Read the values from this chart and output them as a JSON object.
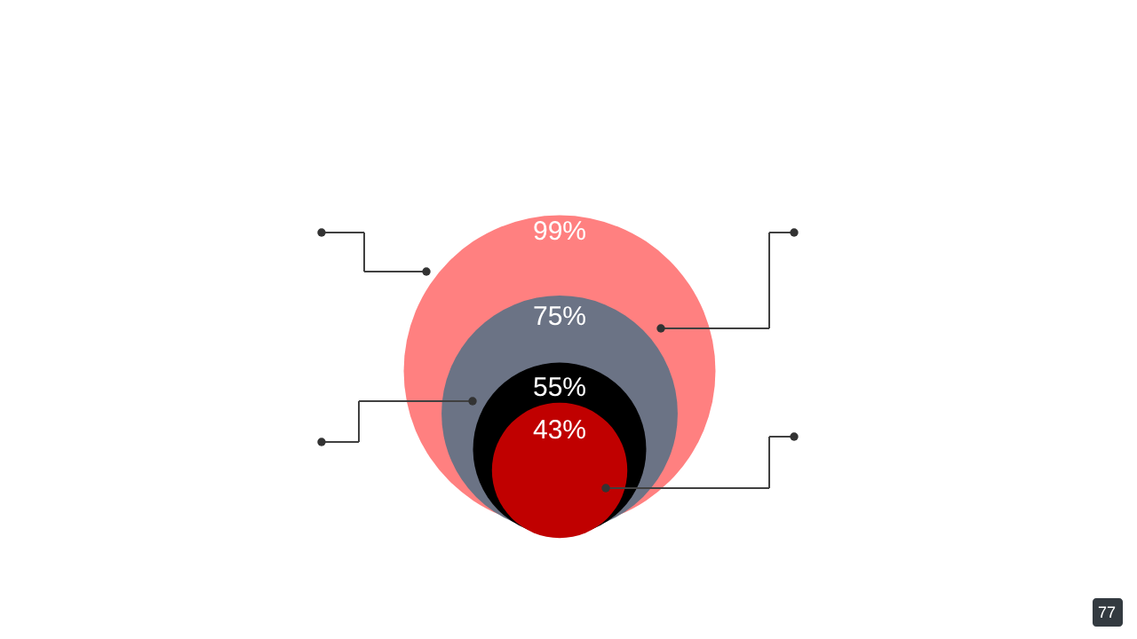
{
  "chart_data": {
    "type": "other",
    "categories": [
      null,
      null,
      null,
      null
    ],
    "values": [
      99,
      75,
      55,
      43
    ],
    "value_labels": [
      "99%",
      "75%",
      "55%",
      "43%"
    ],
    "colors": [
      "#ff8080",
      "#6b7385",
      "#000000",
      "#c00000"
    ],
    "annotations": [
      "77"
    ]
  }
}
